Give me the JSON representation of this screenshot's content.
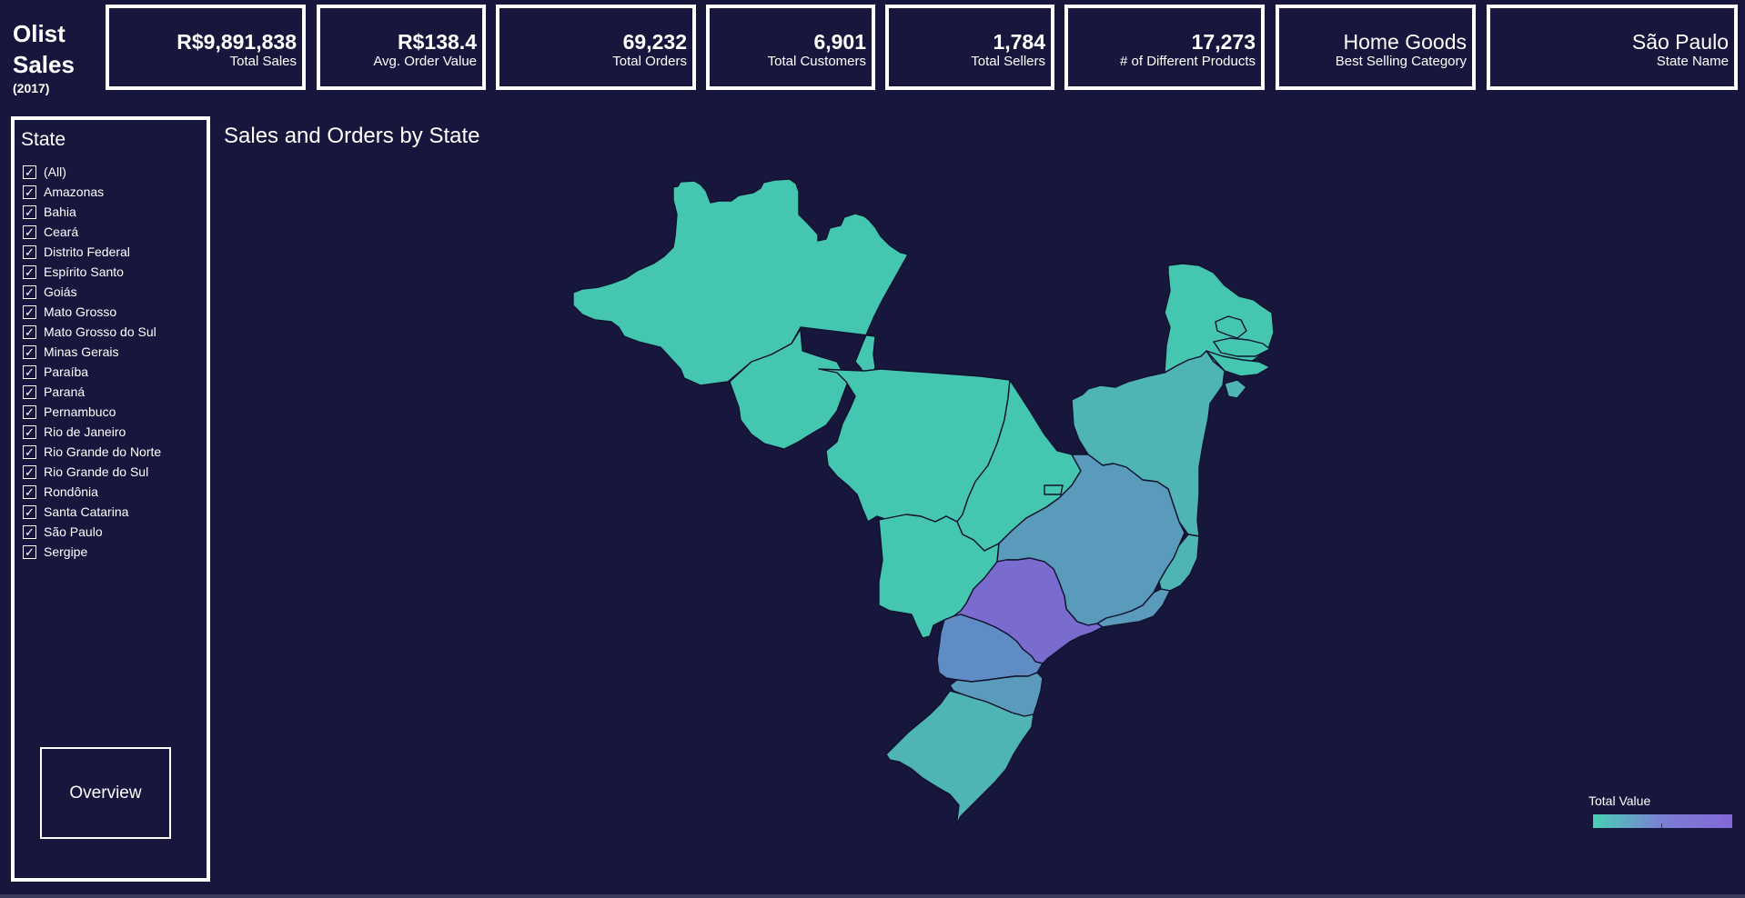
{
  "brand": {
    "name_line1": "Olist",
    "name_line2": "Sales",
    "year": "(2017)"
  },
  "kpis": {
    "total_sales": {
      "value": "R$9,891,838",
      "label": "Total Sales"
    },
    "avg_order_value": {
      "value": "R$138.4",
      "label": "Avg. Order Value"
    },
    "total_orders": {
      "value": "69,232",
      "label": "Total Orders"
    },
    "total_customers": {
      "value": "6,901",
      "label": "Total Customers"
    },
    "total_sellers": {
      "value": "1,784",
      "label": "Total Sellers"
    },
    "different_products": {
      "value": "17,273",
      "label": "# of Different Products"
    },
    "best_category": {
      "value": "Home Goods",
      "label": "Best Selling Category"
    },
    "state_name": {
      "value": "São Paulo",
      "label": "State Name"
    }
  },
  "filter": {
    "title": "State",
    "items": [
      {
        "label": "(All)",
        "checked": true
      },
      {
        "label": "Amazonas",
        "checked": true
      },
      {
        "label": "Bahia",
        "checked": true
      },
      {
        "label": "Ceará",
        "checked": true
      },
      {
        "label": "Distrito Federal",
        "checked": true
      },
      {
        "label": "Espírito Santo",
        "checked": true
      },
      {
        "label": "Goiás",
        "checked": true
      },
      {
        "label": "Mato Grosso",
        "checked": true
      },
      {
        "label": "Mato Grosso do Sul",
        "checked": true
      },
      {
        "label": "Minas Gerais",
        "checked": true
      },
      {
        "label": "Paraíba",
        "checked": true
      },
      {
        "label": "Paraná",
        "checked": true
      },
      {
        "label": "Pernambuco",
        "checked": true
      },
      {
        "label": "Rio de Janeiro",
        "checked": true
      },
      {
        "label": "Rio Grande do Norte",
        "checked": true
      },
      {
        "label": "Rio Grande do Sul",
        "checked": true
      },
      {
        "label": "Rondônia",
        "checked": true
      },
      {
        "label": "Santa Catarina",
        "checked": true
      },
      {
        "label": "São Paulo",
        "checked": true
      },
      {
        "label": "Sergipe",
        "checked": true
      }
    ],
    "check_glyph": "✓"
  },
  "overview_button": {
    "label": "Overview"
  },
  "map": {
    "title": "Sales and Orders by State",
    "legend_title": "Total Value",
    "colors": {
      "low": "#45c6b0",
      "mid_low": "#4fb4b4",
      "mid": "#5a9aba",
      "mid_high": "#5f8cc4",
      "high": "#7a6ccf",
      "outline": "#10122e"
    }
  }
}
